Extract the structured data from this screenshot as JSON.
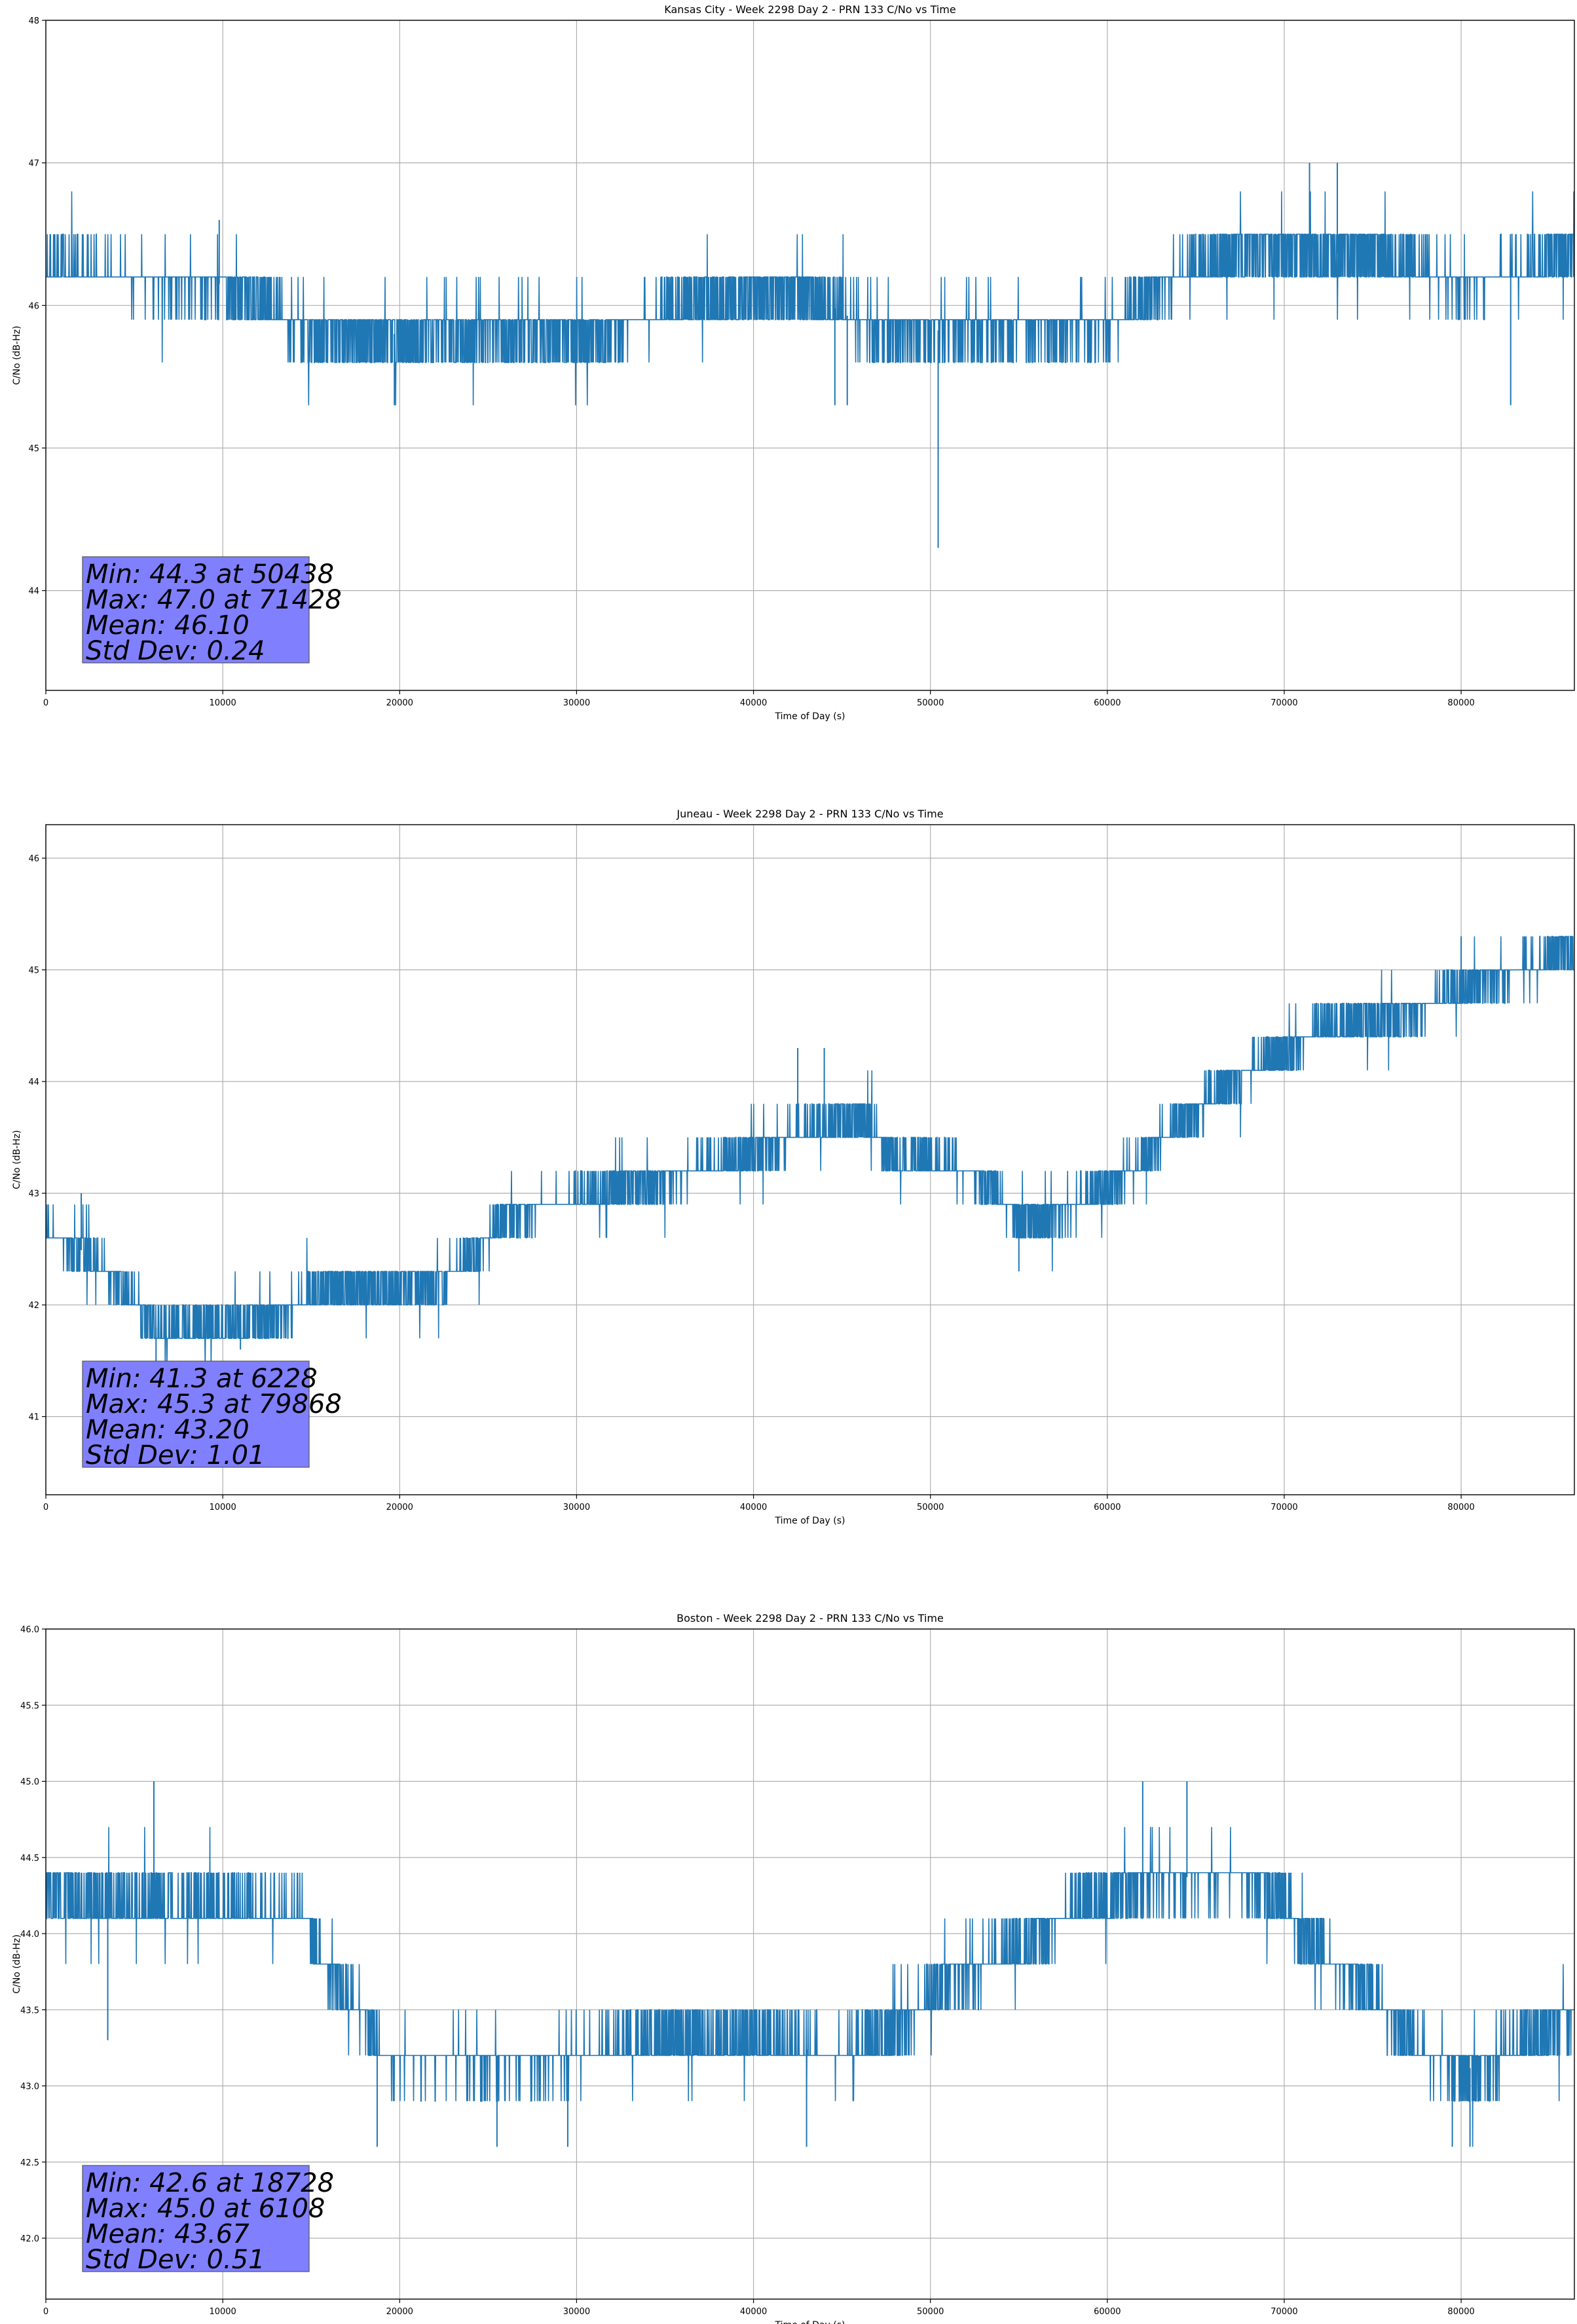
{
  "chart_data": [
    {
      "type": "line",
      "title": "Kansas City - Week 2298 Day 2 - PRN 133 C/No vs Time",
      "xlabel": "Time of Day (s)",
      "ylabel": "C/No (dB-Hz)",
      "xlim": [
        0,
        86400
      ],
      "ylim": [
        43.3,
        48.0
      ],
      "xticks": [
        0,
        10000,
        20000,
        30000,
        40000,
        50000,
        60000,
        70000,
        80000
      ],
      "yticks": [
        44,
        45,
        46,
        47,
        48
      ],
      "grid": true,
      "color": "#1f77b4",
      "quantization": 0.3,
      "trend": [
        [
          0,
          46.25
        ],
        [
          4000,
          46.2
        ],
        [
          10000,
          46.15
        ],
        [
          15000,
          45.8
        ],
        [
          25000,
          45.8
        ],
        [
          31000,
          45.8
        ],
        [
          36000,
          46.0
        ],
        [
          43000,
          46.1
        ],
        [
          47000,
          45.8
        ],
        [
          54000,
          45.85
        ],
        [
          60000,
          45.85
        ],
        [
          63000,
          46.15
        ],
        [
          68000,
          46.4
        ],
        [
          75000,
          46.35
        ],
        [
          80000,
          46.15
        ],
        [
          84000,
          46.25
        ],
        [
          86400,
          46.4
        ]
      ],
      "spikes": [
        [
          50438,
          44.3
        ],
        [
          71428,
          47.0
        ],
        [
          73000,
          47.0
        ],
        [
          19700,
          45.3
        ],
        [
          44600,
          45.3
        ],
        [
          45300,
          45.3
        ],
        [
          82800,
          45.3
        ],
        [
          9800,
          46.6
        ],
        [
          18000,
          45.6
        ]
      ],
      "stats": [
        "Min: 44.3 at 50438",
        "Max: 47.0 at 71428",
        "Mean: 46.10",
        "Std Dev: 0.24"
      ],
      "stats_box_color": "#8080ff"
    },
    {
      "type": "line",
      "title": "Juneau - Week 2298 Day 2 - PRN 133 C/No vs Time",
      "xlabel": "Time of Day (s)",
      "ylabel": "C/No (dB-Hz)",
      "xlim": [
        0,
        86400
      ],
      "ylim": [
        40.3,
        46.3
      ],
      "xticks": [
        0,
        10000,
        20000,
        30000,
        40000,
        50000,
        60000,
        70000,
        80000
      ],
      "yticks": [
        41,
        42,
        43,
        44,
        45,
        46
      ],
      "grid": true,
      "color": "#1f77b4",
      "quantization": 0.3,
      "trend": [
        [
          0,
          42.65
        ],
        [
          2500,
          42.45
        ],
        [
          4500,
          42.1
        ],
        [
          6500,
          41.75
        ],
        [
          10000,
          41.8
        ],
        [
          13000,
          41.9
        ],
        [
          16000,
          42.15
        ],
        [
          22000,
          42.15
        ],
        [
          24000,
          42.4
        ],
        [
          26000,
          42.8
        ],
        [
          30000,
          42.95
        ],
        [
          34000,
          43.1
        ],
        [
          38000,
          43.25
        ],
        [
          42000,
          43.5
        ],
        [
          46000,
          43.7
        ],
        [
          48000,
          43.3
        ],
        [
          50000,
          43.3
        ],
        [
          53000,
          43.15
        ],
        [
          55000,
          42.75
        ],
        [
          58000,
          42.85
        ],
        [
          61000,
          43.2
        ],
        [
          63000,
          43.45
        ],
        [
          66000,
          43.9
        ],
        [
          69000,
          44.2
        ],
        [
          72000,
          44.45
        ],
        [
          77000,
          44.6
        ],
        [
          80000,
          44.85
        ],
        [
          84000,
          45.05
        ],
        [
          86400,
          45.15
        ]
      ],
      "spikes": [
        [
          6228,
          41.3
        ],
        [
          44000,
          44.3
        ],
        [
          42500,
          44.3
        ],
        [
          55000,
          42.3
        ],
        [
          80000,
          45.3
        ],
        [
          2000,
          43.0
        ],
        [
          11000,
          41.6
        ],
        [
          83500,
          45.3
        ]
      ],
      "stats": [
        "Min: 41.3 at 6228",
        "Max: 45.3 at 79868",
        "Mean: 43.20",
        "Std Dev: 1.01"
      ],
      "stats_box_color": "#8080ff"
    },
    {
      "type": "line",
      "title": "Boston - Week 2298 Day 2 - PRN 133 C/No vs Time",
      "xlabel": "Time of Day (s)",
      "ylabel": "C/No (dB-Hz)",
      "xlim": [
        0,
        86400
      ],
      "ylim": [
        41.6,
        46.0
      ],
      "xticks": [
        0,
        10000,
        20000,
        30000,
        40000,
        50000,
        60000,
        70000,
        80000
      ],
      "yticks": [
        42.0,
        42.5,
        43.0,
        43.5,
        44.0,
        44.5,
        45.0,
        45.5,
        46.0
      ],
      "grid": true,
      "color": "#1f77b4",
      "quantization": 0.3,
      "trend": [
        [
          0,
          44.25
        ],
        [
          5000,
          44.2
        ],
        [
          10000,
          44.15
        ],
        [
          14500,
          44.15
        ],
        [
          15500,
          43.85
        ],
        [
          17500,
          43.5
        ],
        [
          19000,
          43.2
        ],
        [
          25000,
          43.15
        ],
        [
          30000,
          43.2
        ],
        [
          35000,
          43.3
        ],
        [
          40000,
          43.3
        ],
        [
          45000,
          43.2
        ],
        [
          48000,
          43.35
        ],
        [
          51000,
          43.7
        ],
        [
          55000,
          43.9
        ],
        [
          58000,
          44.15
        ],
        [
          62000,
          44.35
        ],
        [
          68000,
          44.4
        ],
        [
          70000,
          44.15
        ],
        [
          72000,
          43.9
        ],
        [
          74000,
          43.7
        ],
        [
          76000,
          43.45
        ],
        [
          78000,
          43.2
        ],
        [
          81000,
          43.1
        ],
        [
          84000,
          43.3
        ],
        [
          86400,
          43.5
        ]
      ],
      "spikes": [
        [
          6108,
          45.0
        ],
        [
          18728,
          42.6
        ],
        [
          25500,
          42.6
        ],
        [
          29500,
          42.6
        ],
        [
          43000,
          42.6
        ],
        [
          62000,
          45.0
        ],
        [
          64500,
          45.0
        ],
        [
          3500,
          43.3
        ],
        [
          79500,
          42.6
        ],
        [
          80500,
          42.6
        ]
      ],
      "stats": [
        "Min: 42.6 at 18728",
        "Max: 45.0 at 6108",
        "Mean: 43.67",
        "Std Dev: 0.51"
      ],
      "stats_box_color": "#8080ff"
    }
  ]
}
